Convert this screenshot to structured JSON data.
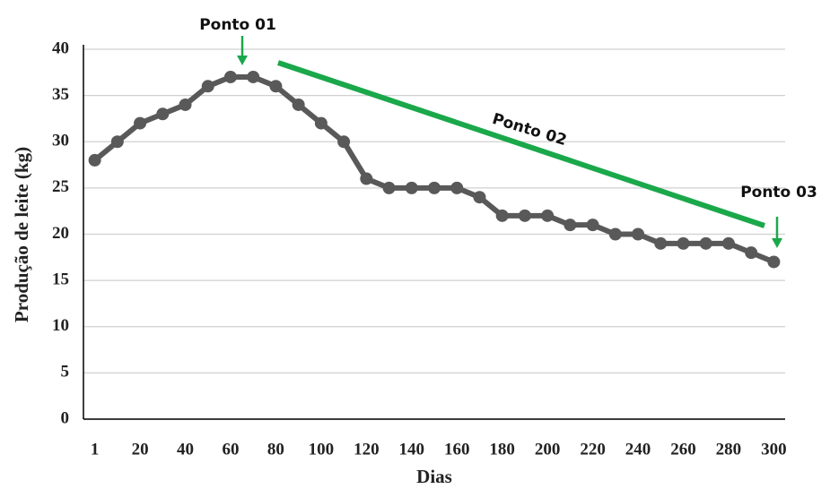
{
  "chart_data": {
    "type": "line",
    "xlabel": "Dias",
    "ylabel": "Produção de leite (kg)",
    "categories": [
      1,
      null,
      20,
      null,
      40,
      null,
      60,
      null,
      80,
      null,
      100,
      null,
      120,
      null,
      140,
      null,
      160,
      null,
      180,
      null,
      200,
      null,
      220,
      null,
      240,
      null,
      260,
      null,
      280,
      null,
      300
    ],
    "series": [
      {
        "name": "Produção",
        "color": "#595959",
        "values": [
          28,
          30,
          32,
          33,
          34,
          36,
          37,
          37,
          36,
          34,
          32,
          30,
          26,
          25,
          25,
          25,
          25,
          24,
          22,
          22,
          22,
          21,
          21,
          20,
          20,
          19,
          19,
          19,
          19,
          18,
          17
        ]
      }
    ],
    "ylim": [
      0,
      40
    ],
    "yticks": [
      0,
      5,
      10,
      15,
      20,
      25,
      30,
      35,
      40
    ],
    "grid": true,
    "annotations": [
      "Ponto 01",
      "Ponto 02",
      "Ponto 03"
    ]
  }
}
